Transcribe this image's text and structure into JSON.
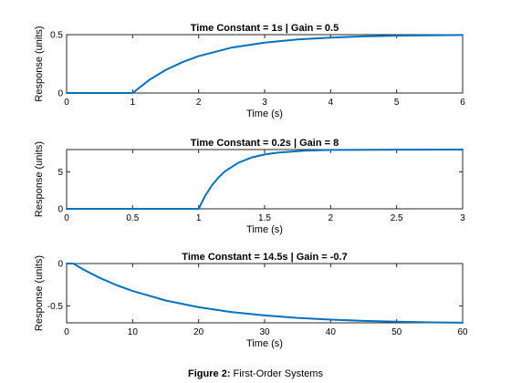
{
  "caption": {
    "label": "Figure 2:",
    "text": "First-Order Systems"
  },
  "chart_data": [
    {
      "type": "line",
      "title": "Time Constant = 1s | Gain = 0.5",
      "xlabel": "Time (s)",
      "ylabel": "Response (units)",
      "xlim": [
        0,
        6
      ],
      "ylim": [
        0,
        0.5
      ],
      "xticks": [
        0,
        1,
        2,
        3,
        4,
        5,
        6
      ],
      "xtick_labels": [
        "0",
        "1",
        "2",
        "3",
        "4",
        "5",
        "6"
      ],
      "yticks": [
        0,
        0.5
      ],
      "ytick_labels": [
        "0",
        "0.5"
      ],
      "series_color": "#0072BD",
      "step_time": 1,
      "time_constant": 1,
      "gain": 0.5,
      "x": [
        0,
        1,
        1.25,
        1.5,
        1.75,
        2,
        2.5,
        3,
        3.5,
        4,
        4.5,
        5,
        5.5,
        6
      ],
      "y": [
        0,
        0,
        0.111,
        0.197,
        0.263,
        0.316,
        0.389,
        0.432,
        0.459,
        0.475,
        0.485,
        0.491,
        0.494,
        0.497
      ]
    },
    {
      "type": "line",
      "title": "Time Constant = 0.2s | Gain = 8",
      "xlabel": "Time (s)",
      "ylabel": "Response (units)",
      "xlim": [
        0,
        3
      ],
      "ylim": [
        0,
        8
      ],
      "xticks": [
        0,
        0.5,
        1,
        1.5,
        2,
        2.5,
        3
      ],
      "xtick_labels": [
        "0",
        "0.5",
        "1",
        "1.5",
        "2",
        "2.5",
        "3"
      ],
      "yticks": [
        0,
        5
      ],
      "ytick_labels": [
        "0",
        "5"
      ],
      "series_color": "#0072BD",
      "step_time": 1,
      "time_constant": 0.2,
      "gain": 8,
      "x": [
        0,
        1,
        1.05,
        1.1,
        1.15,
        1.2,
        1.3,
        1.4,
        1.5,
        1.6,
        1.8,
        2,
        2.5,
        3
      ],
      "y": [
        0,
        0,
        1.77,
        3.15,
        4.22,
        5.06,
        6.21,
        6.92,
        7.34,
        7.59,
        7.85,
        7.95,
        7.99,
        8.0
      ]
    },
    {
      "type": "line",
      "title": "Time Constant = 14.5s | Gain = -0.7",
      "xlabel": "Time (s)",
      "ylabel": "Response (units)",
      "xlim": [
        0,
        60
      ],
      "ylim": [
        -0.7,
        0
      ],
      "xticks": [
        0,
        10,
        20,
        30,
        40,
        50,
        60
      ],
      "xtick_labels": [
        "0",
        "10",
        "20",
        "30",
        "40",
        "50",
        "60"
      ],
      "yticks": [
        -0.5,
        0
      ],
      "ytick_labels": [
        "-0.5",
        "0"
      ],
      "series_color": "#0072BD",
      "step_time": 1,
      "time_constant": 14.5,
      "gain": -0.7,
      "x": [
        0,
        1,
        2.5,
        5,
        7.5,
        10,
        15,
        20,
        25,
        30,
        35,
        40,
        45,
        50,
        55,
        60
      ],
      "y": [
        0,
        0,
        -0.069,
        -0.169,
        -0.253,
        -0.324,
        -0.436,
        -0.516,
        -0.573,
        -0.613,
        -0.642,
        -0.662,
        -0.677,
        -0.687,
        -0.694,
        -0.699
      ]
    }
  ]
}
